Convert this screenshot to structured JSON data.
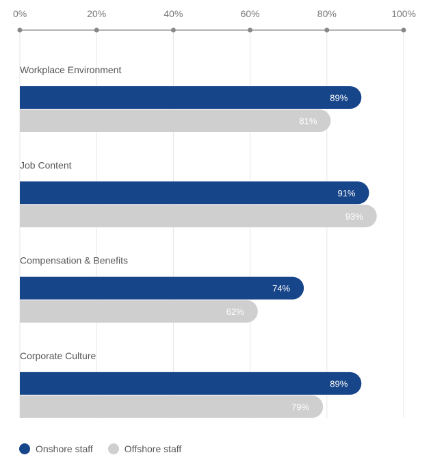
{
  "chart_data": {
    "type": "bar",
    "orientation": "horizontal",
    "categories": [
      "Workplace Environment",
      "Job Content",
      "Compensation & Benefits",
      "Corporate Culture"
    ],
    "series": [
      {
        "name": "Onshore staff",
        "values": [
          89,
          91,
          74,
          89
        ],
        "color": "#17458a"
      },
      {
        "name": "Offshore staff",
        "values": [
          81,
          93,
          62,
          79
        ],
        "color": "#cfcfcf"
      }
    ],
    "xlim": [
      0,
      100
    ],
    "xticks": [
      0,
      20,
      40,
      60,
      80,
      100
    ],
    "tick_suffix": "%",
    "axis_position": "top",
    "grid": true,
    "legend_position": "bottom-left"
  }
}
